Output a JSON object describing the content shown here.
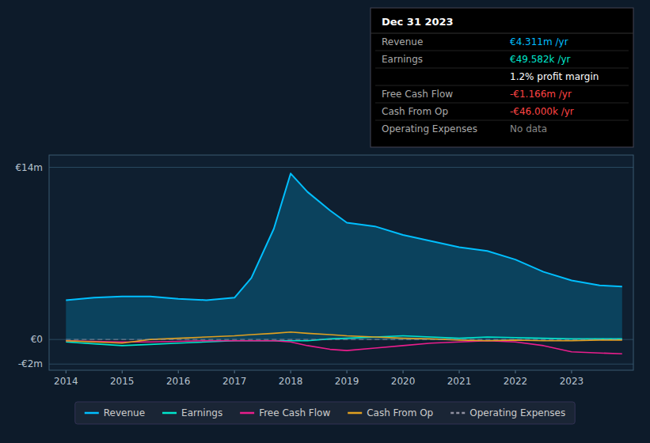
{
  "chart_data": {
    "type": "line",
    "x": [
      2014,
      2014.5,
      2015,
      2015.5,
      2016,
      2016.5,
      2017,
      2017.3,
      2017.7,
      2018,
      2018.3,
      2018.7,
      2019,
      2019.5,
      2020,
      2020.5,
      2021,
      2021.5,
      2022,
      2022.5,
      2023,
      2023.5,
      2023.9
    ],
    "series": [
      {
        "name": "Revenue",
        "type": "area",
        "color": "#00bfff",
        "values": [
          3200000,
          3400000,
          3500000,
          3500000,
          3300000,
          3200000,
          3400000,
          5000000,
          9000000,
          13500000,
          12000000,
          10500000,
          9500000,
          9200000,
          8500000,
          8000000,
          7500000,
          7200000,
          6500000,
          5500000,
          4800000,
          4400000,
          4311000
        ]
      },
      {
        "name": "Earnings",
        "color": "#00e5cc",
        "values": [
          -200000,
          -350000,
          -500000,
          -400000,
          -300000,
          -200000,
          -100000,
          -100000,
          -100000,
          -100000,
          -100000,
          50000,
          100000,
          200000,
          300000,
          200000,
          100000,
          200000,
          150000,
          100000,
          50000,
          49582,
          49582
        ]
      },
      {
        "name": "Free Cash Flow",
        "color": "#e91e8c",
        "values": [
          -100000,
          -150000,
          -200000,
          -200000,
          -150000,
          -100000,
          -100000,
          -100000,
          -100000,
          -200000,
          -500000,
          -800000,
          -900000,
          -700000,
          -500000,
          -300000,
          -200000,
          -100000,
          -200000,
          -500000,
          -1000000,
          -1100000,
          -1166000
        ]
      },
      {
        "name": "Cash From Op",
        "color": "#e0a020",
        "values": [
          -100000,
          -200000,
          -300000,
          0,
          100000,
          200000,
          300000,
          400000,
          500000,
          600000,
          500000,
          400000,
          300000,
          200000,
          100000,
          50000,
          -50000,
          -100000,
          -50000,
          -100000,
          -100000,
          -46000,
          -46000
        ]
      },
      {
        "name": "Operating Expenses",
        "color": "#9090a0",
        "line_style": "dashed",
        "values": [
          0,
          0,
          0,
          0,
          0,
          0,
          0,
          0,
          0,
          0,
          0,
          0,
          0,
          0,
          0,
          0,
          0,
          0,
          0,
          0,
          0,
          0,
          0
        ]
      }
    ],
    "xlim": [
      2013.7,
      2024.1
    ],
    "xticks": [
      2014,
      2015,
      2016,
      2017,
      2018,
      2019,
      2020,
      2021,
      2022,
      2023
    ],
    "ylim": [
      -2500000,
      15000000
    ],
    "yticks": [
      {
        "value": 14000000,
        "label": "€14m"
      },
      {
        "value": 0,
        "label": "€0"
      },
      {
        "value": -2000000,
        "label": "-€2m"
      }
    ],
    "grid": true,
    "legend": "bottom",
    "annotations": [
      {
        "title": "Dec 31 2023",
        "rows": [
          {
            "label": "Revenue",
            "value": "€4.311m /yr",
            "color": "#00bfff"
          },
          {
            "label": "Earnings",
            "value": "€49.582k /yr",
            "color": "#00e5cc"
          },
          {
            "value": "1.2% profit margin",
            "color": "#ffffff"
          },
          {
            "label": "Free Cash Flow",
            "value": "-€1.166m /yr",
            "color": "#ff4444"
          },
          {
            "label": "Cash From Op",
            "value": "-€46.000k /yr",
            "color": "#ff4444"
          },
          {
            "label": "Operating Expenses",
            "value": "No data",
            "color": "#888888"
          }
        ]
      }
    ]
  }
}
